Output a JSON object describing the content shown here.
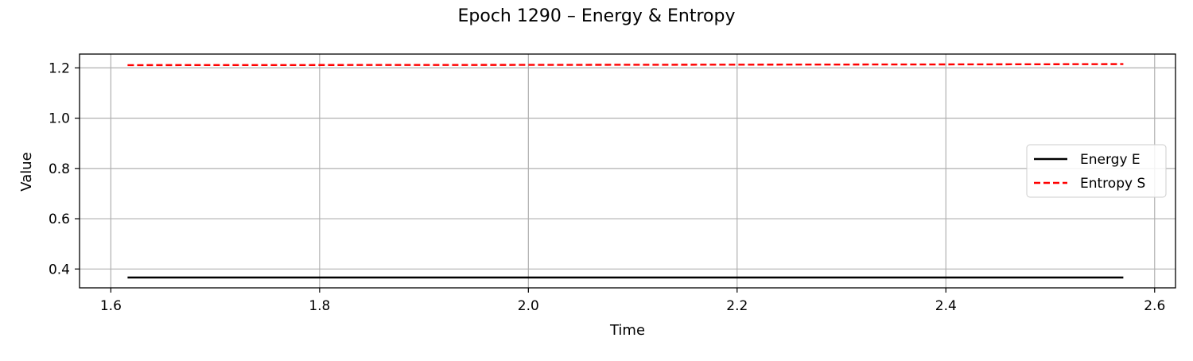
{
  "chart_data": {
    "type": "line",
    "title": "Epoch 1290 – Energy & Entropy",
    "xlabel": "Time",
    "ylabel": "Value",
    "xlim": [
      1.57,
      2.62
    ],
    "ylim": [
      0.325,
      1.255
    ],
    "xticks": [
      1.6,
      1.8,
      2.0,
      2.2,
      2.4,
      2.6
    ],
    "yticks": [
      0.4,
      0.6,
      0.8,
      1.0,
      1.2
    ],
    "xtick_labels": [
      "1.6",
      "1.8",
      "2.0",
      "2.2",
      "2.4",
      "2.6"
    ],
    "ytick_labels": [
      "0.4",
      "0.6",
      "0.8",
      "1.0",
      "1.2"
    ],
    "grid": true,
    "legend_position": "center-right",
    "x": [
      1.616,
      2.0,
      2.4,
      2.57
    ],
    "series": [
      {
        "name": "Energy E",
        "values": [
          0.366,
          0.366,
          0.366,
          0.366
        ],
        "color": "#000000",
        "style": "solid"
      },
      {
        "name": "Entropy S",
        "values": [
          1.211,
          1.212,
          1.214,
          1.215
        ],
        "color": "#ff0000",
        "style": "dashed"
      }
    ]
  }
}
